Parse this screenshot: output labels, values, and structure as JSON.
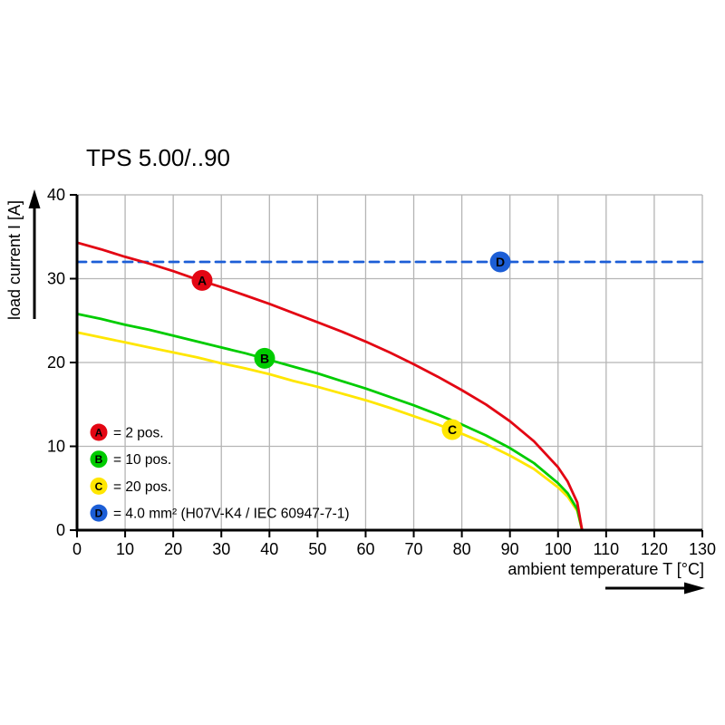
{
  "chart_data": {
    "type": "line",
    "title": "TPS 5.00/..90",
    "xlabel": "ambient temperature T [°C]",
    "ylabel": "load current I [A]",
    "xlim": [
      0,
      130
    ],
    "ylim": [
      0,
      40
    ],
    "xticks": [
      0,
      10,
      20,
      30,
      40,
      50,
      60,
      70,
      80,
      90,
      100,
      110,
      120,
      130
    ],
    "yticks": [
      0,
      10,
      20,
      30,
      40
    ],
    "grid": true,
    "grid_color": "#b5b5b5",
    "axis_color": "#000000",
    "background": "#ffffff",
    "legend_position": "lower-left",
    "series": [
      {
        "name": "A",
        "label": "= 2 pos.",
        "color": "#e30613",
        "style": "solid",
        "x": [
          0,
          5,
          10,
          15,
          20,
          25,
          30,
          35,
          40,
          45,
          50,
          55,
          60,
          65,
          70,
          75,
          80,
          85,
          90,
          95,
          100,
          102,
          104,
          105
        ],
        "y": [
          34.3,
          33.5,
          32.6,
          31.8,
          30.9,
          29.9,
          29.0,
          28.0,
          27.0,
          25.9,
          24.8,
          23.7,
          22.5,
          21.2,
          19.8,
          18.3,
          16.7,
          15.0,
          13.0,
          10.6,
          7.5,
          5.8,
          3.3,
          0
        ],
        "marker": {
          "letter": "A",
          "x": 26,
          "y": 29.8
        }
      },
      {
        "name": "B",
        "label": "= 10 pos.",
        "color": "#00cc00",
        "style": "solid",
        "x": [
          0,
          5,
          10,
          15,
          20,
          25,
          30,
          35,
          40,
          45,
          50,
          55,
          60,
          65,
          70,
          75,
          80,
          85,
          90,
          95,
          100,
          102,
          104,
          105
        ],
        "y": [
          25.8,
          25.2,
          24.5,
          23.9,
          23.2,
          22.5,
          21.8,
          21.1,
          20.3,
          19.5,
          18.7,
          17.8,
          16.9,
          15.9,
          14.9,
          13.8,
          12.6,
          11.3,
          9.8,
          8.0,
          5.6,
          4.4,
          2.5,
          0
        ],
        "marker": {
          "letter": "B",
          "x": 39,
          "y": 20.5
        }
      },
      {
        "name": "C",
        "label": "= 20 pos.",
        "color": "#ffe600",
        "style": "solid",
        "x": [
          0,
          5,
          10,
          15,
          20,
          25,
          30,
          35,
          40,
          45,
          50,
          55,
          60,
          65,
          70,
          75,
          80,
          85,
          90,
          95,
          100,
          102,
          104,
          105
        ],
        "y": [
          23.6,
          23.0,
          22.4,
          21.8,
          21.2,
          20.6,
          19.9,
          19.3,
          18.6,
          17.8,
          17.1,
          16.3,
          15.5,
          14.6,
          13.6,
          12.6,
          11.5,
          10.3,
          8.9,
          7.3,
          5.1,
          4.0,
          2.3,
          0
        ],
        "marker": {
          "letter": "C",
          "x": 78,
          "y": 12.0
        }
      },
      {
        "name": "D",
        "label": "= 4.0 mm² (H07V-K4 / IEC 60947-7-1)",
        "color": "#1c5ed6",
        "style": "dashed",
        "x": [
          0,
          130
        ],
        "y": [
          32,
          32
        ],
        "marker": {
          "letter": "D",
          "x": 88,
          "y": 32
        }
      }
    ]
  }
}
